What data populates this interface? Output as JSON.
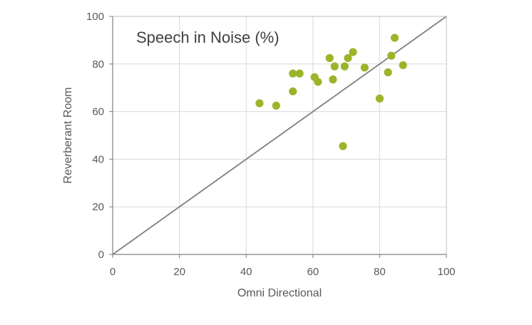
{
  "chart_data": {
    "type": "scatter",
    "title": "Speech in Noise (%)",
    "xlabel": "Omni Directional",
    "ylabel": "Reverberant Room",
    "xlim": [
      0,
      100
    ],
    "ylim": [
      0,
      100
    ],
    "xticks": [
      "0",
      "20",
      "40",
      "60",
      "80",
      "100"
    ],
    "yticks": [
      "0",
      "20",
      "40",
      "60",
      "80",
      "100"
    ],
    "grid": true,
    "legend": "none",
    "reference_line": {
      "from": [
        0,
        0
      ],
      "to": [
        100,
        100
      ],
      "color": "#808080"
    },
    "series": [
      {
        "color": "#9BB52A",
        "points": [
          {
            "x": 44,
            "y": 63.5
          },
          {
            "x": 49,
            "y": 62.5
          },
          {
            "x": 54,
            "y": 76
          },
          {
            "x": 54,
            "y": 68.5
          },
          {
            "x": 56,
            "y": 76
          },
          {
            "x": 60.5,
            "y": 74.5
          },
          {
            "x": 61.5,
            "y": 72.5
          },
          {
            "x": 65,
            "y": 82.5
          },
          {
            "x": 66,
            "y": 73.5
          },
          {
            "x": 66.5,
            "y": 79
          },
          {
            "x": 69,
            "y": 45.5
          },
          {
            "x": 69.5,
            "y": 79
          },
          {
            "x": 70.5,
            "y": 82.5
          },
          {
            "x": 72,
            "y": 85
          },
          {
            "x": 75.5,
            "y": 78.5
          },
          {
            "x": 80,
            "y": 65.5
          },
          {
            "x": 82.5,
            "y": 76.5
          },
          {
            "x": 83.5,
            "y": 83.5
          },
          {
            "x": 84.5,
            "y": 91
          },
          {
            "x": 87,
            "y": 79.5
          }
        ]
      }
    ]
  }
}
